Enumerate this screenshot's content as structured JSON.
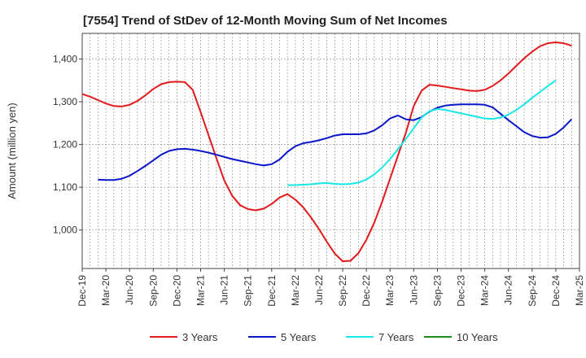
{
  "chart_data": {
    "type": "line",
    "title": "[7554]  Trend of StDev of 12-Month Moving Sum of Net Incomes",
    "ylabel": "Amount (million yen)",
    "xlabel": "",
    "ylim": [
      910,
      1460
    ],
    "yticks": [
      1000,
      1100,
      1200,
      1300,
      1400
    ],
    "ytick_labels": [
      "1,000",
      "1,100",
      "1,200",
      "1,300",
      "1,400"
    ],
    "x_start": "2019-12",
    "xtick_labels": [
      "Dec-19",
      "Mar-20",
      "Jun-20",
      "Sep-20",
      "Dec-20",
      "Mar-21",
      "Jun-21",
      "Sep-21",
      "Dec-21",
      "Mar-22",
      "Jun-22",
      "Sep-22",
      "Dec-22",
      "Mar-23",
      "Jun-23",
      "Sep-23",
      "Dec-23",
      "Mar-24",
      "Jun-24",
      "Sep-24",
      "Dec-24",
      "Mar-25"
    ],
    "grid": true,
    "legend_position": "bottom",
    "series": [
      {
        "name": "3 Years",
        "color": "#e31a1c",
        "start": "2019-12",
        "values": [
          1318,
          1312,
          1304,
          1296,
          1290,
          1289,
          1293,
          1302,
          1315,
          1330,
          1341,
          1346,
          1347,
          1346,
          1328,
          1276,
          1222,
          1168,
          1116,
          1080,
          1058,
          1049,
          1046,
          1050,
          1061,
          1076,
          1084,
          1071,
          1053,
          1029,
          1002,
          972,
          945,
          927,
          928,
          946,
          977,
          1017,
          1066,
          1120,
          1174,
          1227,
          1290,
          1326,
          1340,
          1338,
          1335,
          1332,
          1329,
          1326,
          1325,
          1328,
          1337,
          1350,
          1366,
          1384,
          1402,
          1417,
          1430,
          1437,
          1439,
          1437,
          1431
        ]
      },
      {
        "name": "5 Years",
        "color": "#0a17c8",
        "start": "2020-02",
        "values": [
          1118,
          1117,
          1117,
          1120,
          1127,
          1138,
          1150,
          1163,
          1176,
          1185,
          1189,
          1190,
          1188,
          1185,
          1181,
          1176,
          1171,
          1166,
          1162,
          1158,
          1154,
          1151,
          1154,
          1165,
          1183,
          1196,
          1203,
          1206,
          1210,
          1215,
          1221,
          1224,
          1224,
          1224,
          1226,
          1233,
          1245,
          1261,
          1268,
          1259,
          1257,
          1264,
          1277,
          1286,
          1291,
          1293,
          1294,
          1294,
          1294,
          1293,
          1287,
          1272,
          1257,
          1243,
          1229,
          1220,
          1216,
          1217,
          1225,
          1240,
          1259
        ]
      },
      {
        "name": "7 Years",
        "color": "#19e6e6",
        "start": "2022-02",
        "values": [
          1105,
          1105,
          1106,
          1107,
          1109,
          1110,
          1108,
          1107,
          1108,
          1111,
          1118,
          1130,
          1146,
          1166,
          1189,
          1213,
          1238,
          1263,
          1278,
          1283,
          1281,
          1277,
          1273,
          1269,
          1265,
          1261,
          1260,
          1263,
          1270,
          1281,
          1294,
          1309,
          1323,
          1337,
          1350
        ]
      },
      {
        "name": "10 Years",
        "color": "#1a8a1a",
        "start": "2019-12",
        "values": []
      }
    ]
  }
}
